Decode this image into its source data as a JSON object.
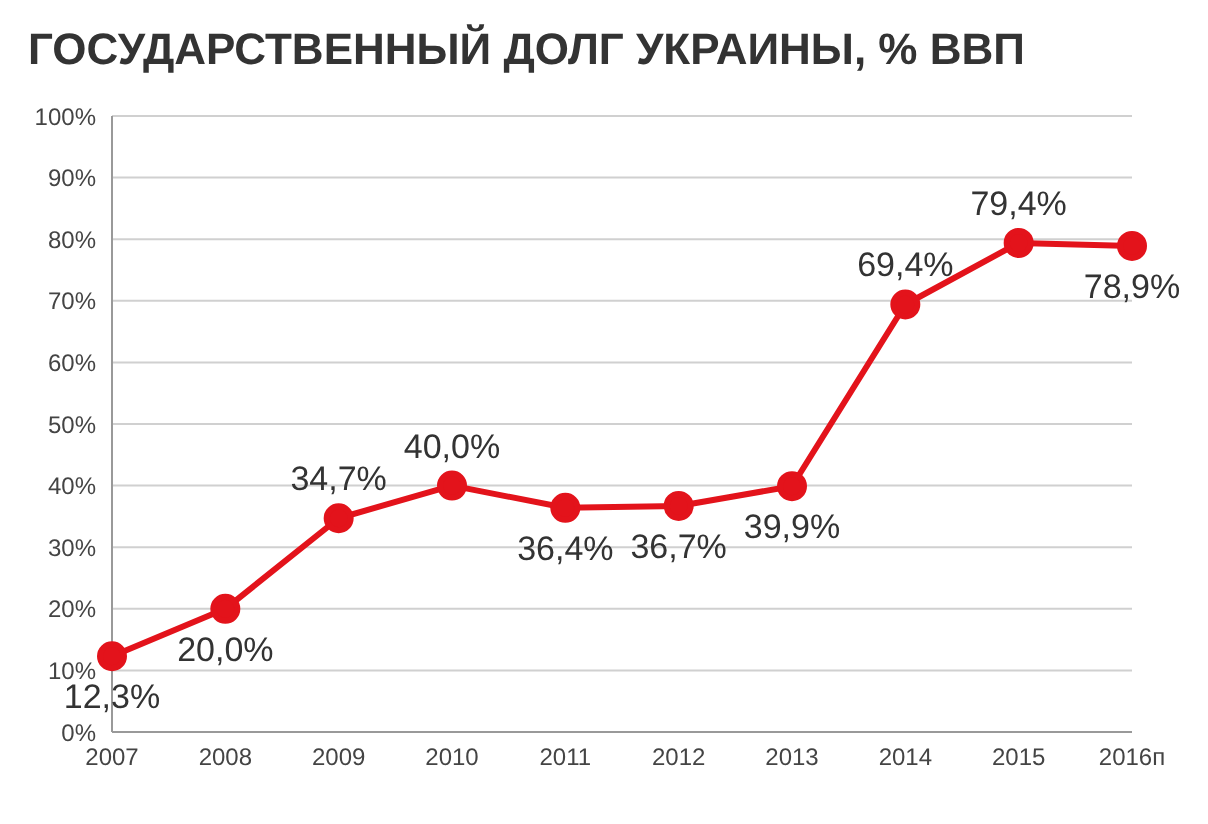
{
  "chart_data": {
    "type": "line",
    "title": "ГОСУДАРСТВЕННЫЙ ДОЛГ УКРАИНЫ, % ВВП",
    "categories": [
      "2007",
      "2008",
      "2009",
      "2010",
      "2011",
      "2012",
      "2013",
      "2014",
      "2015",
      "2016п"
    ],
    "series": [
      {
        "color": "#e3131b",
        "values": [
          12.3,
          20.0,
          34.7,
          40.0,
          36.4,
          36.7,
          39.9,
          69.4,
          79.4,
          78.9
        ],
        "value_labels": [
          "12,3%",
          "20,0%",
          "34,7%",
          "40,0%",
          "36,4%",
          "36,7%",
          "39,9%",
          "69,4%",
          "79,4%",
          "78,9%"
        ]
      }
    ],
    "ylim": [
      0,
      100
    ],
    "yticks": [
      {
        "value": 0,
        "label": "0%"
      },
      {
        "value": 10,
        "label": "10%"
      },
      {
        "value": 20,
        "label": "20%"
      },
      {
        "value": 30,
        "label": "30%"
      },
      {
        "value": 40,
        "label": "40%"
      },
      {
        "value": 50,
        "label": "50%"
      },
      {
        "value": 60,
        "label": "60%"
      },
      {
        "value": 70,
        "label": "70%"
      },
      {
        "value": 80,
        "label": "80%"
      },
      {
        "value": 90,
        "label": "90%"
      },
      {
        "value": 100,
        "label": "100%"
      }
    ],
    "grid": "y",
    "marker": "circle",
    "line_style": "solid"
  }
}
